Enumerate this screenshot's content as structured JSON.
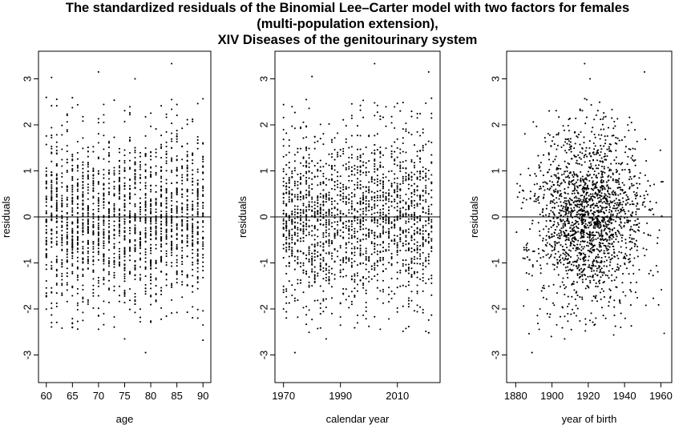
{
  "title": {
    "line1": "The standardized residuals of the Binomial Lee–Carter model with two factors for females",
    "line2": "(multi-population extension),",
    "line3": "XIV Diseases of the genitourinary system"
  },
  "chart_data": [
    {
      "type": "scatter",
      "xlabel": "age",
      "ylabel": "residuals",
      "xlim": [
        58.5,
        91.5
      ],
      "ylim": [
        -3.6,
        3.6
      ],
      "xticks": [
        "60",
        "65",
        "70",
        "75",
        "80",
        "85",
        "90"
      ],
      "yticks": [
        "-3",
        "-2",
        "-1",
        "0",
        "1",
        "2",
        "3"
      ],
      "reference_line_y": 0,
      "x_integer": true,
      "x_range": [
        60,
        90
      ],
      "n_points": 1900,
      "sd": 0.95,
      "seed": 11,
      "notable_points": [
        {
          "x": 61,
          "y": 3.03
        },
        {
          "x": 70,
          "y": 3.15
        },
        {
          "x": 77,
          "y": 3.0
        },
        {
          "x": 84,
          "y": 3.33
        },
        {
          "x": 75,
          "y": -2.65
        },
        {
          "x": 79,
          "y": -2.95
        },
        {
          "x": 90,
          "y": -2.68
        }
      ]
    },
    {
      "type": "scatter",
      "xlabel": "calendar year",
      "ylabel": "residuals",
      "xlim": [
        1967,
        2025
      ],
      "ylim": [
        -3.6,
        3.6
      ],
      "xticks": [
        "1970",
        "1990",
        "2010"
      ],
      "yticks": [
        "-3",
        "-2",
        "-1",
        "0",
        "1",
        "2",
        "3"
      ],
      "reference_line_y": 0,
      "x_integer": true,
      "x_range": [
        1970,
        2022
      ],
      "n_points": 1900,
      "sd": 0.95,
      "seed": 23,
      "notable_points": [
        {
          "x": 1974,
          "y": -2.95
        },
        {
          "x": 1980,
          "y": 3.05
        },
        {
          "x": 2002,
          "y": 3.33
        },
        {
          "x": 2021,
          "y": 3.15
        },
        {
          "x": 1985,
          "y": -2.65
        }
      ]
    },
    {
      "type": "scatter",
      "xlabel": "year of birth",
      "ylabel": "residuals",
      "xlim": [
        1875,
        1966
      ],
      "ylim": [
        -3.6,
        3.6
      ],
      "xticks": [
        "1880",
        "1900",
        "1920",
        "1940",
        "1960"
      ],
      "yticks": [
        "-3",
        "-2",
        "-1",
        "0",
        "1",
        "2",
        "3"
      ],
      "reference_line_y": 0,
      "x_integer": false,
      "x_range": [
        1880,
        1962
      ],
      "x_center": 1920,
      "x_spread": 15,
      "n_points": 1900,
      "sd": 0.95,
      "seed": 37,
      "notable_points": [
        {
          "x": 1918,
          "y": 3.33
        },
        {
          "x": 1951,
          "y": 3.15
        },
        {
          "x": 1889,
          "y": -2.95
        },
        {
          "x": 1907,
          "y": -2.65
        },
        {
          "x": 1921,
          "y": 3.0
        }
      ]
    }
  ]
}
